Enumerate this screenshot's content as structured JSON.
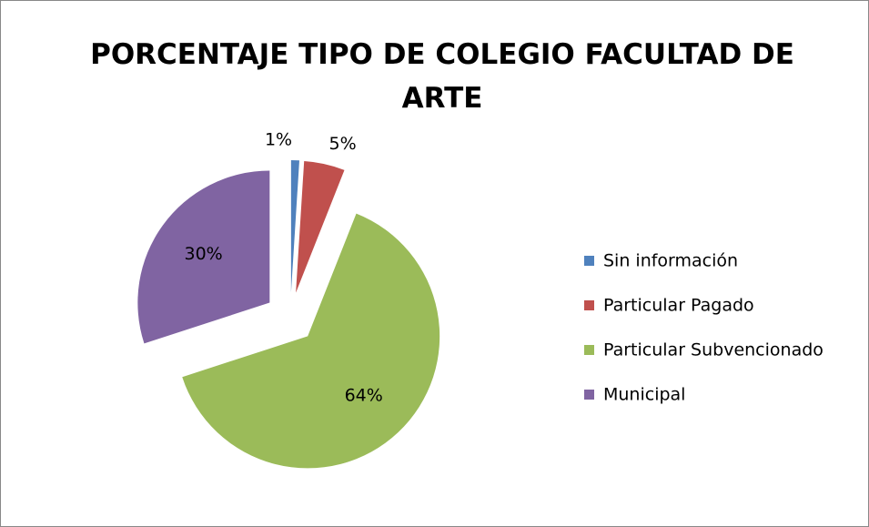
{
  "chart_data": {
    "type": "pie",
    "title": "PORCENTAJE TIPO DE COLEGIO FACULTAD DE ARTE",
    "categories": [
      "Sin información",
      "Particular Pagado",
      "Particular Subvencionado",
      "Municipal"
    ],
    "values": [
      1,
      5,
      64,
      30
    ],
    "value_labels": [
      "1%",
      "5%",
      "64%",
      "30%"
    ],
    "colors": [
      "#4f81bd",
      "#c0504d",
      "#9bbb59",
      "#8064a2"
    ],
    "legend": "right"
  }
}
